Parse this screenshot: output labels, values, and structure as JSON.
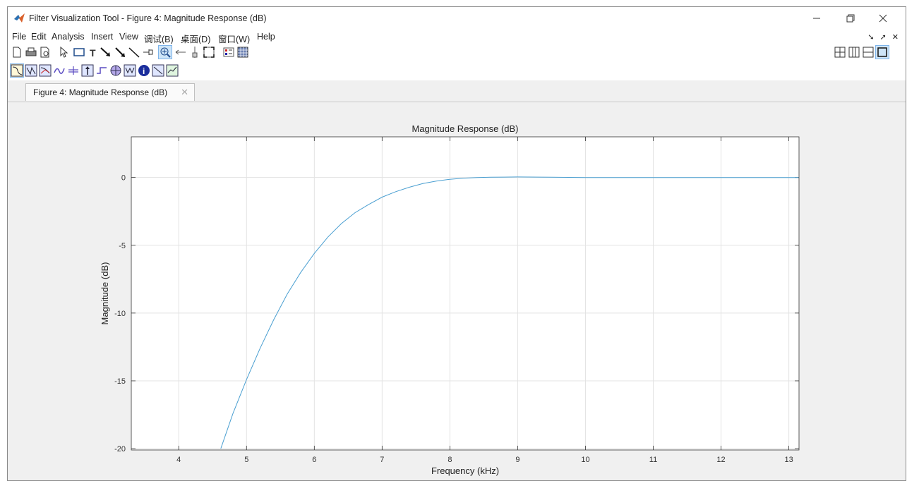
{
  "window": {
    "title": "Filter Visualization Tool - Figure 4: Magnitude Response (dB)"
  },
  "menu": [
    "File",
    "Edit",
    "Analysis",
    "Insert",
    "View",
    "调试(B)",
    "桌面(D)",
    "窗口(W)",
    "Help"
  ],
  "toolbar1_icons": [
    "new-figure-icon",
    "print-icon",
    "print-preview-icon",
    "select-arrow-icon",
    "rectangle-icon",
    "text-icon",
    "arrow-icon",
    "double-arrow-icon",
    "line-icon",
    "pin-icon",
    "zoom-in-icon",
    "pan-icon",
    "data-cursor-icon",
    "full-view-icon",
    "legend-icon",
    "grid-icon"
  ],
  "toolbar2_icons": [
    "magnitude-response-icon",
    "phase-response-icon",
    "magnitude-phase-icon",
    "group-delay-icon",
    "phase-delay-icon",
    "impulse-response-icon",
    "step-response-icon",
    "pole-zero-icon",
    "filter-coefficients-icon",
    "filter-info-icon",
    "magnitude-estimate-icon",
    "noise-psd-icon"
  ],
  "layout_icons": [
    "tile-grid-icon",
    "tile-columns-icon",
    "tile-rows-icon",
    "maximize-icon"
  ],
  "tab": {
    "label": "Figure 4: Magnitude Response (dB)"
  },
  "chart_data": {
    "type": "line",
    "title": "Magnitude Response (dB)",
    "xlabel": "Frequency (kHz)",
    "ylabel": "Magnitude (dB)",
    "xlim": [
      3.3,
      13.15
    ],
    "ylim": [
      -20.1,
      3
    ],
    "xticks": [
      4,
      5,
      6,
      7,
      8,
      9,
      10,
      11,
      12,
      13
    ],
    "yticks": [
      0,
      -5,
      -10,
      -15,
      -20
    ],
    "grid": true,
    "line_color": "#4a9fd1",
    "x": [
      4.62,
      4.8,
      5.0,
      5.2,
      5.4,
      5.6,
      5.8,
      6.0,
      6.2,
      6.4,
      6.6,
      6.8,
      7.0,
      7.2,
      7.4,
      7.6,
      7.8,
      8.0,
      8.2,
      8.4,
      8.6,
      8.8,
      9.0,
      9.5,
      10.0,
      11.0,
      12.0,
      13.15
    ],
    "y": [
      -20.0,
      -17.4,
      -14.9,
      -12.6,
      -10.5,
      -8.6,
      -7.0,
      -5.6,
      -4.4,
      -3.4,
      -2.6,
      -2.0,
      -1.45,
      -1.05,
      -0.72,
      -0.45,
      -0.26,
      -0.13,
      -0.05,
      0.0,
      0.02,
      0.03,
      0.04,
      0.02,
      0.0,
      0.0,
      0.0,
      0.0
    ]
  }
}
